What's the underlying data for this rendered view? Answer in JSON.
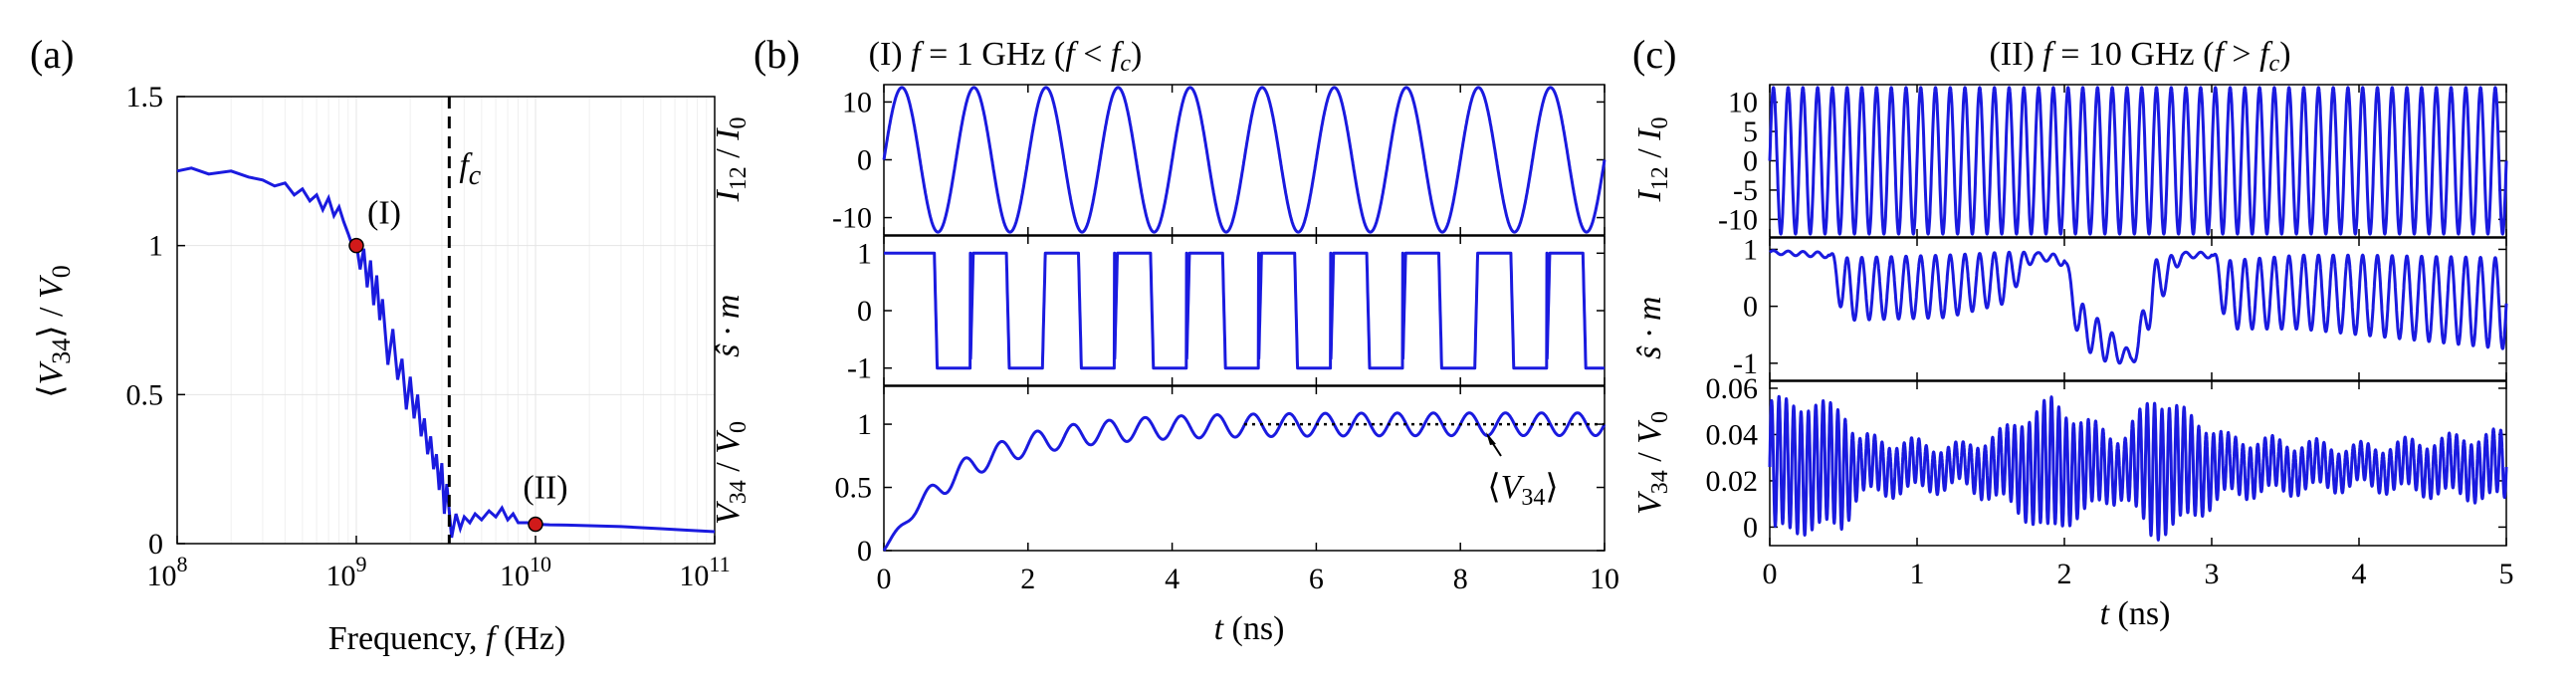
{
  "chart_data": [
    {
      "id": "a",
      "type": "line",
      "panel_label": "(a)",
      "xlabel": "Frequency, f (Hz)",
      "ylabel": "⟨V34⟩ / V0",
      "x_scale": "log",
      "xlim": [
        100000000.0,
        100000000000.0
      ],
      "ylim": [
        0,
        1.5
      ],
      "grid": true,
      "xtick_labels": [
        "10^8",
        "10^9",
        "10^10",
        "10^11"
      ],
      "ytick_labels": [
        "0",
        "0.5",
        "1",
        "1.5"
      ],
      "series": [
        {
          "color": "#1a1adf",
          "x": [
            100000000.0,
            120000000.0,
            150000000.0,
            200000000.0,
            250000000.0,
            300000000.0,
            350000000.0,
            400000000.0,
            450000000.0,
            500000000.0,
            550000000.0,
            600000000.0,
            650000000.0,
            700000000.0,
            750000000.0,
            800000000.0,
            850000000.0,
            900000000.0,
            950000000.0,
            1000000000.0,
            1050000000.0,
            1100000000.0,
            1150000000.0,
            1200000000.0,
            1250000000.0,
            1300000000.0,
            1350000000.0,
            1400000000.0,
            1500000000.0,
            1600000000.0,
            1700000000.0,
            1800000000.0,
            1900000000.0,
            2000000000.0,
            2100000000.0,
            2200000000.0,
            2300000000.0,
            2400000000.0,
            2500000000.0,
            2600000000.0,
            2700000000.0,
            2800000000.0,
            2900000000.0,
            3000000000.0,
            3100000000.0,
            3200000000.0,
            3400000000.0,
            3600000000.0,
            3800000000.0,
            4000000000.0,
            4300000000.0,
            4600000000.0,
            5000000000.0,
            5500000000.0,
            6000000000.0,
            6500000000.0,
            7000000000.0,
            7500000000.0,
            8000000000.0,
            9000000000.0,
            10000000000.0,
            12000000000.0,
            15000000000.0,
            20000000000.0,
            30000000000.0,
            50000000000.0,
            70000000000.0,
            100000000000.0
          ],
          "y": [
            1.25,
            1.26,
            1.24,
            1.25,
            1.23,
            1.22,
            1.2,
            1.21,
            1.17,
            1.19,
            1.15,
            1.17,
            1.12,
            1.16,
            1.1,
            1.13,
            1.08,
            1.04,
            1.0,
            1.01,
            0.92,
            0.99,
            0.86,
            0.95,
            0.8,
            0.9,
            0.75,
            0.82,
            0.6,
            0.72,
            0.55,
            0.62,
            0.45,
            0.56,
            0.42,
            0.5,
            0.36,
            0.42,
            0.3,
            0.36,
            0.25,
            0.3,
            0.18,
            0.27,
            0.1,
            0.2,
            0.02,
            0.1,
            0.05,
            0.09,
            0.07,
            0.1,
            0.08,
            0.11,
            0.09,
            0.12,
            0.08,
            0.1,
            0.07,
            0.07,
            0.065,
            0.063,
            0.062,
            0.06,
            0.057,
            0.05,
            0.045,
            0.04
          ]
        }
      ],
      "vline": {
        "x": 3300000000.0,
        "label": "f_c",
        "style": "dashed"
      },
      "markers": [
        {
          "label": "(I)",
          "x": 1000000000.0,
          "y": 1.0,
          "color": "#d11a1a"
        },
        {
          "label": "(II)",
          "x": 10000000000.0,
          "y": 0.065,
          "color": "#d11a1a"
        }
      ]
    },
    {
      "id": "b",
      "type": "line",
      "panel_label": "(b)",
      "title": "(I) f = 1 GHz (f < f_c)",
      "xlabel": "t (ns)",
      "xlim": [
        0,
        10
      ],
      "xtick_labels": [
        "0",
        "2",
        "4",
        "6",
        "8",
        "10"
      ],
      "subplots": [
        {
          "ylabel": "I12 / I0",
          "ylim": [
            -13,
            13
          ],
          "ytick_labels": [
            "10",
            "0",
            "-10"
          ],
          "series": [
            {
              "color": "#1a1adf",
              "function": "12.5*sin(2*pi*1*t)",
              "t": [
                0,
                10
              ]
            }
          ]
        },
        {
          "ylabel": "ŝ·m⃗",
          "ylim": [
            -1.3,
            1.3
          ],
          "ytick_labels": [
            "1",
            "0",
            "-1"
          ],
          "series": [
            {
              "color": "#1a1adf",
              "function": "square wave ±1, period 1 ns, switches at t = 0.70 + 0.5k ns",
              "t": [
                0,
                10
              ]
            }
          ]
        },
        {
          "ylabel": "V34 / V0",
          "ylim": [
            0,
            1.3
          ],
          "ytick_labels": [
            "1",
            "0.5",
            "0"
          ],
          "series": [
            {
              "color": "#1a1adf",
              "function": "1.0*(1 - exp(-t/1.1)) + 0.09*sin(2*pi*2*t)",
              "t": [
                0,
                10
              ]
            }
          ],
          "reference_line": {
            "y": 1.0,
            "x": [
              5,
              10
            ],
            "style": "dotted"
          },
          "annotation": "⟨V34⟩"
        }
      ]
    },
    {
      "id": "c",
      "type": "line",
      "panel_label": "(c)",
      "title": "(II) f = 10 GHz (f > f_c)",
      "xlabel": "t (ns)",
      "xlim": [
        0,
        5
      ],
      "xtick_labels": [
        "0",
        "1",
        "2",
        "3",
        "4",
        "5"
      ],
      "subplots": [
        {
          "ylabel": "I12 / I0",
          "ylim": [
            -13,
            13
          ],
          "ytick_labels": [
            "10",
            "5",
            "0",
            "-5",
            "-10"
          ],
          "series": [
            {
              "color": "#1a1adf",
              "function": "12.5*sin(2*pi*10*t)",
              "t": [
                0,
                5
              ]
            }
          ]
        },
        {
          "ylabel": "ŝ·m⃗",
          "ylim": [
            -1.3,
            1.2
          ],
          "ytick_labels": [
            "1",
            "0",
            "-1"
          ],
          "series": [
            {
              "color": "#1a1adf",
              "function": "center(t) + amp(t)*sin(2*pi*10*t), irregular envelope",
              "t": [
                0,
                5
              ]
            }
          ]
        },
        {
          "ylabel": "V34 / V0",
          "ylim": [
            -0.008,
            0.063
          ],
          "ytick_labels": [
            "0.06",
            "0.04",
            "0.02",
            "0"
          ],
          "series": [
            {
              "color": "#1a1adf",
              "function": "0.025 + amp(t)*sin(2*pi*20*t), irregular envelope",
              "t": [
                0,
                5
              ]
            }
          ]
        }
      ]
    }
  ]
}
